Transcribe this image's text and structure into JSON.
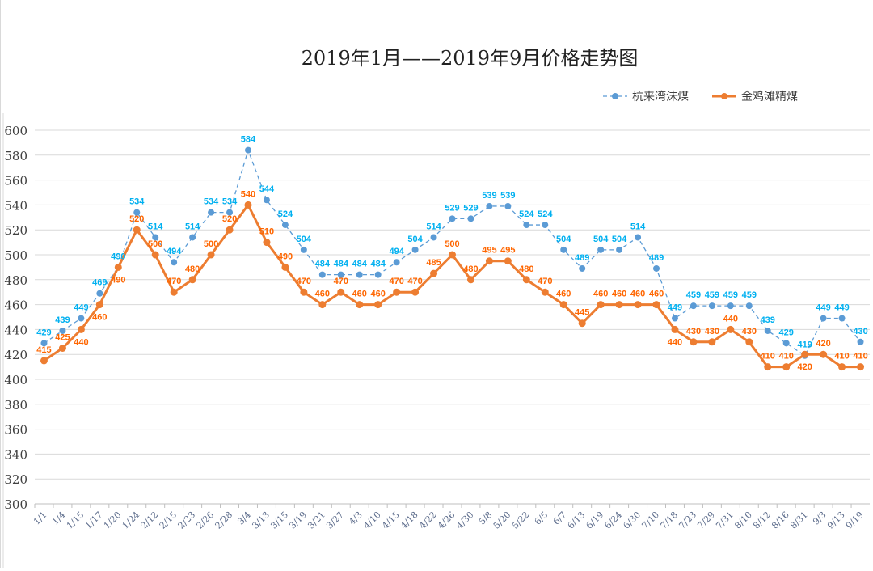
{
  "chart_data": {
    "type": "line",
    "title": "2019年1月——2019年9月价格走势图",
    "categories": [
      "1/1",
      "1/4",
      "1/15",
      "1/17",
      "1/20",
      "1/24",
      "2/12",
      "2/15",
      "2/23",
      "2/26",
      "2/28",
      "3/4",
      "3/13",
      "3/15",
      "3/19",
      "3/21",
      "3/27",
      "4/3",
      "4/10",
      "4/15",
      "4/18",
      "4/22",
      "4/26",
      "4/30",
      "5/8",
      "5/20",
      "5/22",
      "6/5",
      "6/7",
      "6/13",
      "6/19",
      "6/24",
      "6/30",
      "7/10",
      "7/18",
      "7/23",
      "7/29",
      "7/31",
      "8/10",
      "8/12",
      "8/16",
      "8/31",
      "9/3",
      "9/13",
      "9/19"
    ],
    "series": [
      {
        "name": "杭来湾沫煤",
        "color": "#5b9bd5",
        "label_color": "#00b0f0",
        "style": "dashed-with-markers",
        "values": [
          429,
          439,
          449,
          469,
          490,
          534,
          514,
          494,
          514,
          534,
          534,
          584,
          544,
          524,
          504,
          484,
          484,
          484,
          484,
          494,
          504,
          514,
          529,
          529,
          539,
          539,
          524,
          524,
          504,
          489,
          504,
          504,
          514,
          489,
          449,
          459,
          459,
          459,
          459,
          439,
          429,
          419,
          449,
          449,
          430
        ]
      },
      {
        "name": "金鸡滩精煤",
        "color": "#ed7d31",
        "label_color": "#ff6600",
        "style": "solid-with-markers",
        "values": [
          415,
          425,
          440,
          460,
          490,
          520,
          500,
          470,
          480,
          500,
          520,
          540,
          510,
          490,
          470,
          460,
          470,
          460,
          460,
          470,
          470,
          485,
          500,
          480,
          495,
          495,
          480,
          470,
          460,
          445,
          460,
          460,
          460,
          460,
          440,
          430,
          430,
          440,
          430,
          410,
          410,
          420,
          420,
          410,
          410
        ]
      }
    ],
    "yticks": [
      300,
      320,
      340,
      360,
      380,
      400,
      420,
      440,
      460,
      480,
      500,
      520,
      540,
      560,
      580,
      600
    ],
    "ylim": [
      300,
      600
    ],
    "grid": true,
    "legend": "top-right",
    "data_labels": true
  }
}
